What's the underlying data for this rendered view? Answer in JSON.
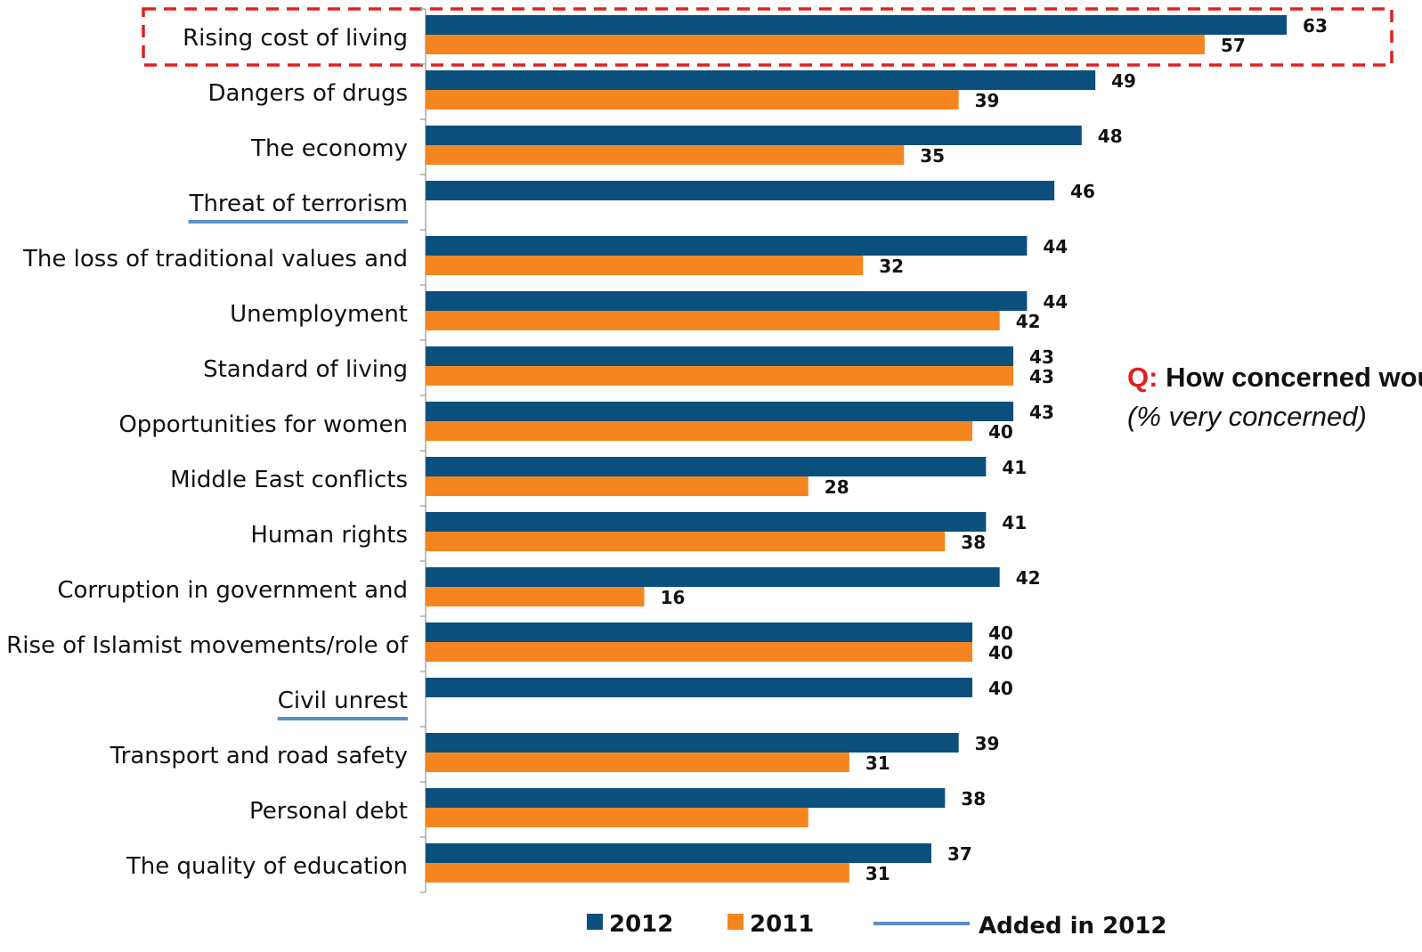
{
  "colors": {
    "series_2012": "#0b4f7c",
    "series_2011": "#f5861f",
    "added_underline": "#5b8fc7",
    "highlight_box": "#e02020",
    "question_prefix": "#e02020"
  },
  "question": {
    "prefix": "Q:",
    "text": "How concerned would you say you are about each of the following issues?",
    "note": "(% very concerned)"
  },
  "legend": {
    "items": [
      {
        "label": "2012",
        "color": "#0b4f7c",
        "type": "square"
      },
      {
        "label": "2011",
        "color": "#f5861f",
        "type": "square"
      },
      {
        "label": "Added in 2012",
        "color": "#5b8fc7",
        "type": "line"
      }
    ]
  },
  "chart_data": {
    "type": "bar",
    "orientation": "horizontal",
    "categories": [
      "Rising cost of living",
      "Dangers of drugs",
      "The economy",
      "Threat of terrorism",
      "The loss of traditional values and",
      "Unemployment",
      "Standard of living",
      "Opportunities for women",
      "Middle East conflicts",
      "Human rights",
      "Corruption in government and",
      "Rise of Islamist movements/role of",
      "Civil unrest",
      "Transport and road safety",
      "Personal debt",
      "The quality of education"
    ],
    "series": [
      {
        "name": "2012",
        "values": [
          63,
          49,
          48,
          46,
          44,
          44,
          43,
          43,
          41,
          41,
          42,
          40,
          40,
          39,
          38,
          37
        ]
      },
      {
        "name": "2011",
        "values": [
          57,
          39,
          35,
          null,
          32,
          42,
          43,
          40,
          28,
          38,
          16,
          40,
          null,
          31,
          28,
          31
        ]
      }
    ],
    "value_labels": {
      "2012": [
        "63",
        "49",
        "48",
        "46",
        "44",
        "44",
        "43",
        "43",
        "41",
        "41",
        "42",
        "40",
        "40",
        "39",
        "38",
        "37"
      ],
      "2011": [
        "57",
        "39",
        "35",
        null,
        "32",
        "42",
        "43",
        "40",
        "28",
        "38",
        "16",
        "40",
        null,
        "31",
        null,
        "31"
      ]
    },
    "added_in_2012": [
      "Threat of terrorism",
      "Civil unrest"
    ],
    "highlighted": [
      "Rising cost of living"
    ],
    "xlim": [
      0,
      70
    ],
    "grid": false,
    "legend_position": "bottom"
  }
}
